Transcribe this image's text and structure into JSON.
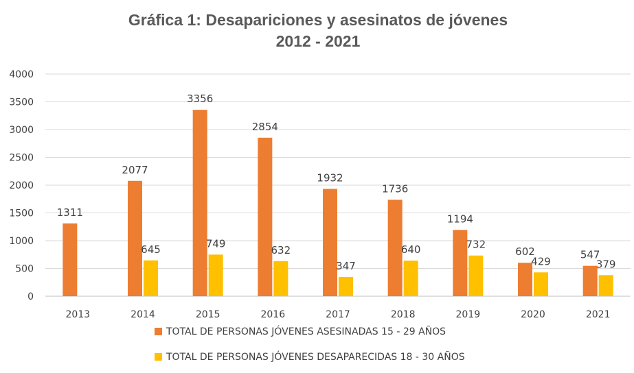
{
  "chart_data": {
    "type": "bar",
    "title": "Gráfica 1: Desapariciones y asesinatos de jóvenes",
    "subtitle": "2012 - 2021",
    "categories": [
      "2013",
      "2014",
      "2015",
      "2016",
      "2017",
      "2018",
      "2019",
      "2020",
      "2021"
    ],
    "series": [
      {
        "name": "TOTAL DE PERSONAS JÓVENES ASESINADAS 15 - 29 AÑOS",
        "color": "#ED7D31",
        "values": [
          1311,
          2077,
          3356,
          2854,
          1932,
          1736,
          1194,
          602,
          547
        ],
        "labels": [
          "1311",
          "2077",
          "3356",
          "2854",
          "1932",
          "1736",
          "1194",
          "602",
          "547"
        ]
      },
      {
        "name": "TOTAL DE PERSONAS JÓVENES DESAPARECIDAS 18 - 30 AÑOS",
        "color": "#FFC000",
        "values": [
          null,
          645,
          749,
          632,
          347,
          640,
          732,
          429,
          379
        ],
        "labels": [
          "",
          "645",
          "749",
          "632",
          "347",
          "640",
          "732",
          "429",
          "379"
        ]
      }
    ],
    "ylim": [
      0,
      4000
    ],
    "yticks": [
      "0",
      "500",
      "1000",
      "1500",
      "2000",
      "2500",
      "3000",
      "3500",
      "4000"
    ],
    "grid": true,
    "legend": "bottom"
  }
}
